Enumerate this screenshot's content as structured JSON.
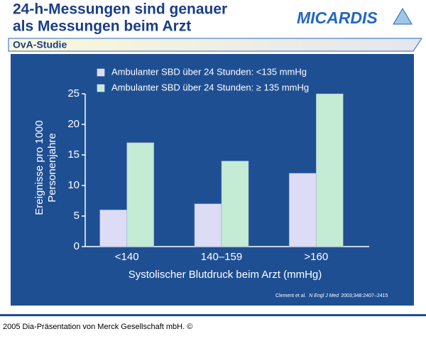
{
  "header": {
    "title_lines": [
      "24-h-Messungen sind genauer",
      "als Messungen beim Arzt"
    ],
    "logo": "MICARDIS",
    "subtitle": "OvA-Studie"
  },
  "chart_data": {
    "type": "bar",
    "ylabel_lines": [
      "Ereignisse pro 1000",
      "Personenjahre"
    ],
    "xlabel": "Systolischer Blutdruck beim Arzt (mmHg)",
    "categories": [
      "<140",
      "140–159",
      ">160"
    ],
    "series": [
      {
        "name": "Ambulanter SBD über 24 Stunden: <135 mmHg",
        "color": "#dcdcf6",
        "values": [
          6,
          7,
          12
        ]
      },
      {
        "name": "Ambulanter SBD über 24 Stunden: ≥ 135 mmHg",
        "color": "#c4ecd4",
        "values": [
          17,
          14,
          25
        ]
      }
    ],
    "ylim": [
      0,
      25
    ],
    "yticks": [
      0,
      5,
      10,
      15,
      20,
      25
    ],
    "grid": false
  },
  "citation": {
    "authors": "Clement et al.",
    "journal": "N Engl J Med",
    "reference": "2003;348:2407–2415"
  },
  "footer": "2005 Dia-Präsentation von Merck Gesellschaft mbH. ©"
}
